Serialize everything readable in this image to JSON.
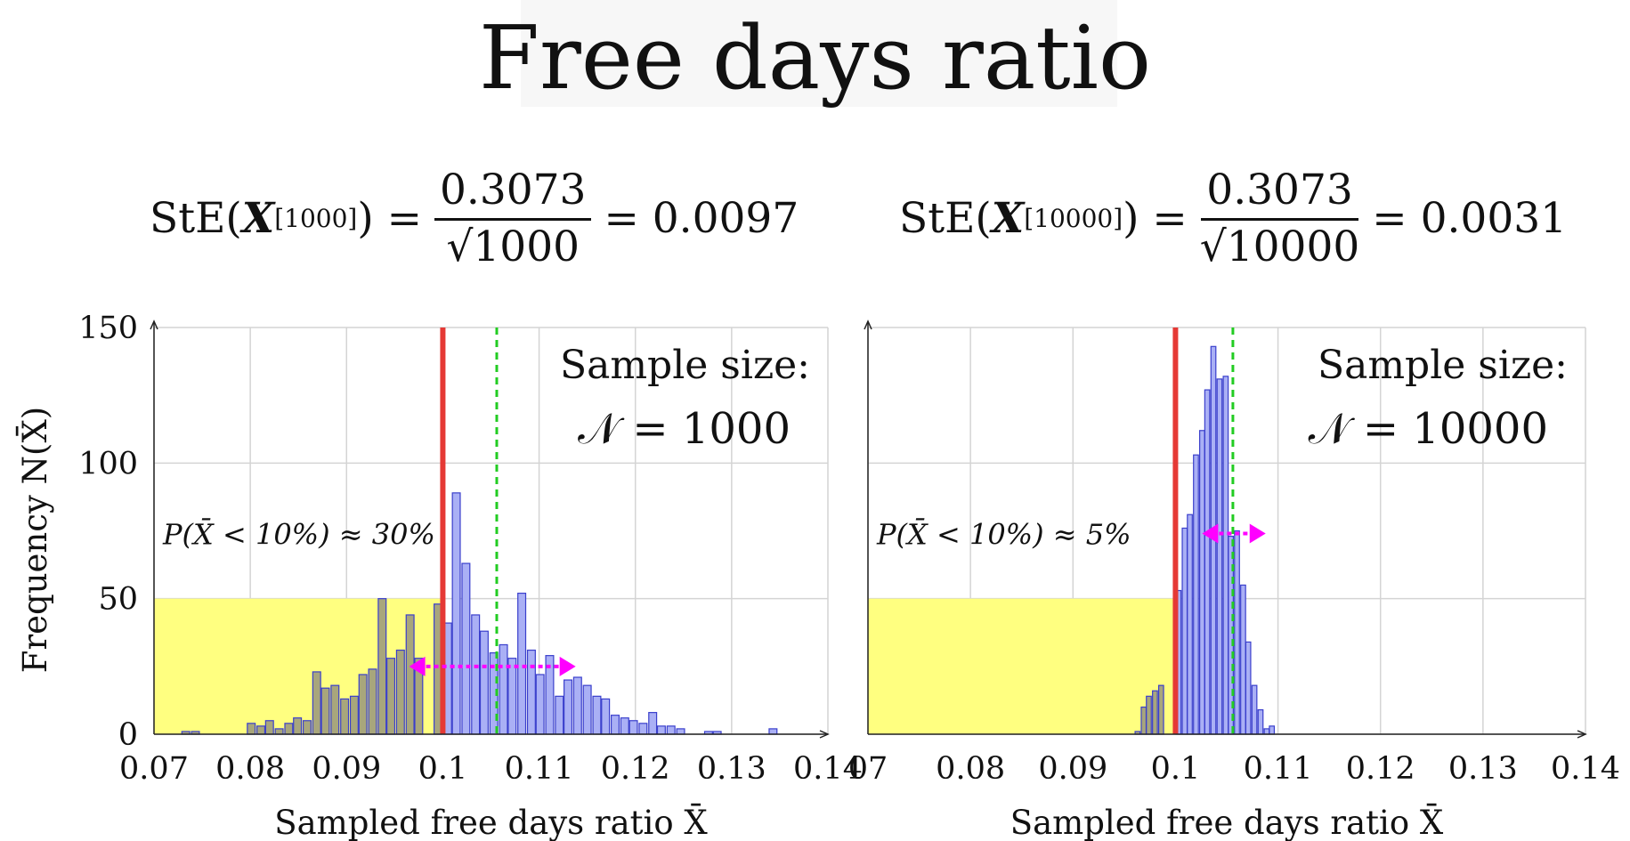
{
  "title": "Free days ratio",
  "formulas": [
    {
      "prefix": "StE(",
      "symbol": "X",
      "sup": "[1000]",
      "eq": ") =",
      "numerator": "0.3073",
      "denominator": "√1000",
      "result": "= 0.0097"
    },
    {
      "prefix": "StE(",
      "symbol": "X",
      "sup": "[10000]",
      "eq": ") =",
      "numerator": "0.3073",
      "denominator": "√10000",
      "result": "= 0.0031"
    }
  ],
  "colors": {
    "bar_fill": "#aab0f5",
    "bar_stroke": "#3a3fcc",
    "bar_shaded": "#a8a67c",
    "region": "#ffff80",
    "true_line": "#e53935",
    "mean_line": "#22cc22",
    "arrow": "#ff00ff",
    "grid": "#d4d4d4"
  },
  "chart_data": [
    {
      "type": "bar",
      "title": "",
      "xlabel": "Sampled free days ratio X̄",
      "ylabel": "Frequency N(X̄)",
      "xlim": [
        0.07,
        0.14
      ],
      "ylim": [
        0,
        150
      ],
      "xticks": [
        "0.07",
        "0.08",
        "0.09",
        "0.1",
        "0.11",
        "0.12",
        "0.13",
        "0.14"
      ],
      "yticks": [
        "0",
        "50",
        "100",
        "150"
      ],
      "annotation_line1": "Sample size:",
      "annotation_line2": "𝒩 = 1000",
      "probability": "P(X̄ < 10%) ≈ 30%",
      "true_ratio": 0.1,
      "sample_mean": 0.1056,
      "arrow_range": [
        0.0965,
        0.1138
      ],
      "highlight_region": {
        "x": [
          0.07,
          0.1
        ],
        "y": [
          0,
          50
        ]
      },
      "bin_width": 0.00097,
      "bins": [
        {
          "x": 0.0733,
          "y": 1
        },
        {
          "x": 0.0743,
          "y": 1
        },
        {
          "x": 0.0801,
          "y": 4
        },
        {
          "x": 0.0811,
          "y": 3
        },
        {
          "x": 0.082,
          "y": 5
        },
        {
          "x": 0.083,
          "y": 2
        },
        {
          "x": 0.084,
          "y": 4
        },
        {
          "x": 0.0849,
          "y": 6
        },
        {
          "x": 0.0859,
          "y": 5
        },
        {
          "x": 0.0869,
          "y": 23
        },
        {
          "x": 0.0878,
          "y": 17
        },
        {
          "x": 0.0888,
          "y": 18
        },
        {
          "x": 0.0898,
          "y": 13
        },
        {
          "x": 0.0908,
          "y": 14
        },
        {
          "x": 0.0917,
          "y": 22
        },
        {
          "x": 0.0927,
          "y": 24
        },
        {
          "x": 0.0937,
          "y": 50
        },
        {
          "x": 0.0946,
          "y": 28
        },
        {
          "x": 0.0956,
          "y": 31
        },
        {
          "x": 0.0966,
          "y": 44
        },
        {
          "x": 0.0975,
          "y": 28
        },
        {
          "x": 0.0995,
          "y": 48
        },
        {
          "x": 0.1005,
          "y": 41
        },
        {
          "x": 0.1014,
          "y": 89
        },
        {
          "x": 0.1024,
          "y": 63
        },
        {
          "x": 0.1034,
          "y": 44
        },
        {
          "x": 0.1043,
          "y": 38
        },
        {
          "x": 0.1053,
          "y": 30
        },
        {
          "x": 0.1063,
          "y": 33
        },
        {
          "x": 0.1072,
          "y": 28
        },
        {
          "x": 0.1082,
          "y": 52
        },
        {
          "x": 0.1092,
          "y": 31
        },
        {
          "x": 0.1101,
          "y": 22
        },
        {
          "x": 0.1111,
          "y": 29
        },
        {
          "x": 0.1121,
          "y": 14
        },
        {
          "x": 0.113,
          "y": 20
        },
        {
          "x": 0.114,
          "y": 21
        },
        {
          "x": 0.115,
          "y": 18
        },
        {
          "x": 0.116,
          "y": 14
        },
        {
          "x": 0.1169,
          "y": 13
        },
        {
          "x": 0.1179,
          "y": 7
        },
        {
          "x": 0.1189,
          "y": 6
        },
        {
          "x": 0.1198,
          "y": 5
        },
        {
          "x": 0.1208,
          "y": 4
        },
        {
          "x": 0.1218,
          "y": 8
        },
        {
          "x": 0.1227,
          "y": 3
        },
        {
          "x": 0.1237,
          "y": 3
        },
        {
          "x": 0.1247,
          "y": 2
        },
        {
          "x": 0.1276,
          "y": 1
        },
        {
          "x": 0.1285,
          "y": 1
        },
        {
          "x": 0.1343,
          "y": 2
        }
      ]
    },
    {
      "type": "bar",
      "title": "",
      "xlabel": "Sampled free days ratio X̄",
      "ylabel": "",
      "xlim": [
        0.07,
        0.14
      ],
      "ylim": [
        0,
        150
      ],
      "xticks": [
        "07",
        "0.08",
        "0.09",
        "0.1",
        "0.11",
        "0.12",
        "0.13",
        "0.14"
      ],
      "yticks": [],
      "annotation_line1": "Sample size:",
      "annotation_line2": "𝒩 = 10000",
      "probability": "P(X̄ < 10%) ≈ 5%",
      "true_ratio": 0.1,
      "sample_mean": 0.1056,
      "arrow_range": [
        0.1026,
        0.1088
      ],
      "highlight_region": {
        "x": [
          0.07,
          0.1
        ],
        "y": [
          0,
          50
        ]
      },
      "bin_width": 0.00057,
      "bins": [
        {
          "x": 0.0963,
          "y": 1
        },
        {
          "x": 0.0969,
          "y": 10
        },
        {
          "x": 0.0974,
          "y": 14
        },
        {
          "x": 0.098,
          "y": 16
        },
        {
          "x": 0.0986,
          "y": 18
        },
        {
          "x": 0.1003,
          "y": 53
        },
        {
          "x": 0.1009,
          "y": 76
        },
        {
          "x": 0.1014,
          "y": 81
        },
        {
          "x": 0.102,
          "y": 103
        },
        {
          "x": 0.1026,
          "y": 112
        },
        {
          "x": 0.1031,
          "y": 127
        },
        {
          "x": 0.1037,
          "y": 143
        },
        {
          "x": 0.1043,
          "y": 131
        },
        {
          "x": 0.1049,
          "y": 132
        },
        {
          "x": 0.1054,
          "y": 73
        },
        {
          "x": 0.106,
          "y": 75
        },
        {
          "x": 0.1066,
          "y": 55
        },
        {
          "x": 0.1071,
          "y": 34
        },
        {
          "x": 0.1077,
          "y": 18
        },
        {
          "x": 0.1083,
          "y": 9
        },
        {
          "x": 0.1089,
          "y": 2
        },
        {
          "x": 0.1094,
          "y": 3
        }
      ]
    }
  ]
}
